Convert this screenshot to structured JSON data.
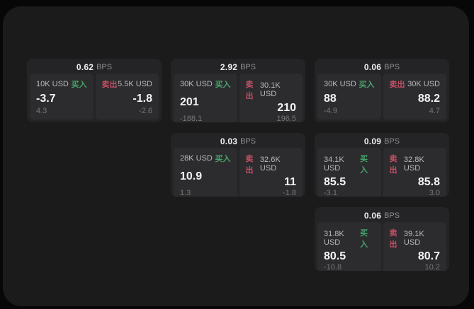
{
  "colors": {
    "surface": "#1b1b1c",
    "card": "#242426",
    "panel": "#2c2c2e",
    "buy_accent": "#46a36a",
    "sell_accent": "#c05066"
  },
  "labels": {
    "buy": "买入",
    "sell": "卖出",
    "bps_unit": "BPS"
  },
  "cards": [
    {
      "grid": {
        "row": 1,
        "col": 1
      },
      "bps": "0.62",
      "buy": {
        "size": "10K USD",
        "price": "-3.7",
        "sub": "4.3"
      },
      "sell": {
        "size": "5.5K USD",
        "price": "-1.8",
        "sub": "-2.6"
      }
    },
    {
      "grid": {
        "row": 1,
        "col": 2
      },
      "bps": "2.92",
      "buy": {
        "size": "30K USD",
        "price": "201",
        "sub": "-188.1"
      },
      "sell": {
        "size": "30.1K USD",
        "price": "210",
        "sub": "196.5"
      }
    },
    {
      "grid": {
        "row": 1,
        "col": 3
      },
      "bps": "0.06",
      "buy": {
        "size": "30K USD",
        "price": "88",
        "sub": "-4.9"
      },
      "sell": {
        "size": "30K USD",
        "price": "88.2",
        "sub": "4.7"
      }
    },
    {
      "grid": {
        "row": 2,
        "col": 2
      },
      "bps": "0.03",
      "buy": {
        "size": "28K USD",
        "price": "10.9",
        "sub": "1.3"
      },
      "sell": {
        "size": "32.6K USD",
        "price": "11",
        "sub": "-1.8"
      }
    },
    {
      "grid": {
        "row": 2,
        "col": 3
      },
      "bps": "0.09",
      "buy": {
        "size": "34.1K USD",
        "price": "85.5",
        "sub": "-3.1"
      },
      "sell": {
        "size": "32.8K USD",
        "price": "85.8",
        "sub": "3.0"
      }
    },
    {
      "grid": {
        "row": 3,
        "col": 3
      },
      "bps": "0.06",
      "buy": {
        "size": "31.8K USD",
        "price": "80.5",
        "sub": "-10.8"
      },
      "sell": {
        "size": "39.1K USD",
        "price": "80.7",
        "sub": "10.2"
      }
    }
  ]
}
